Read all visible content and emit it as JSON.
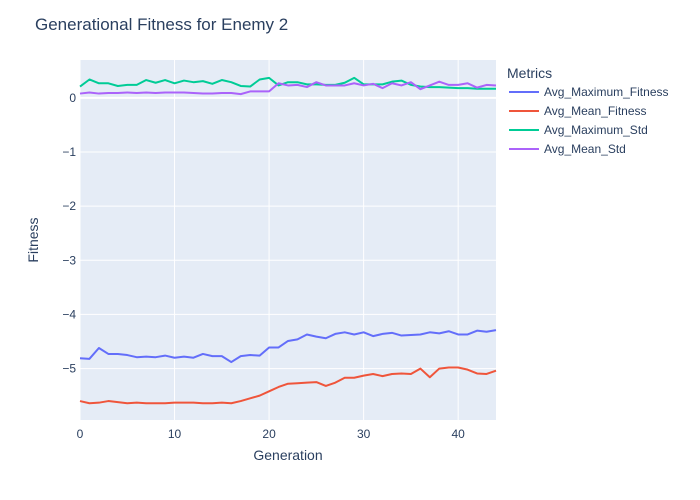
{
  "chart_data": {
    "type": "line",
    "title": "Generational Fitness for Enemy 2",
    "xlabel": "Generation",
    "ylabel": "Fitness",
    "xlim": [
      0,
      44
    ],
    "ylim": [
      -5.95,
      0.7
    ],
    "xticks": [
      0,
      10,
      20,
      30,
      40
    ],
    "yticks": [
      -5,
      -4,
      -3,
      -2,
      -1,
      0
    ],
    "grid": true,
    "legend_title": "Metrics",
    "legend_position": "right",
    "x": [
      0,
      1,
      2,
      3,
      4,
      5,
      6,
      7,
      8,
      9,
      10,
      11,
      12,
      13,
      14,
      15,
      16,
      17,
      18,
      19,
      20,
      21,
      22,
      23,
      24,
      25,
      26,
      27,
      28,
      29,
      30,
      31,
      32,
      33,
      34,
      35,
      36,
      37,
      38,
      39,
      40,
      41,
      42,
      43,
      44
    ],
    "series": [
      {
        "name": "Avg_Maximum_Fitness",
        "color": "#636efa",
        "values": [
          -4.81,
          -4.82,
          -4.62,
          -4.73,
          -4.73,
          -4.75,
          -4.79,
          -4.78,
          -4.79,
          -4.76,
          -4.8,
          -4.78,
          -4.8,
          -4.73,
          -4.77,
          -4.77,
          -4.88,
          -4.77,
          -4.75,
          -4.76,
          -4.61,
          -4.61,
          -4.49,
          -4.46,
          -4.37,
          -4.41,
          -4.44,
          -4.36,
          -4.33,
          -4.37,
          -4.33,
          -4.4,
          -4.36,
          -4.34,
          -4.39,
          -4.38,
          -4.37,
          -4.33,
          -4.35,
          -4.31,
          -4.37,
          -4.37,
          -4.3,
          -4.32,
          -4.29
        ]
      },
      {
        "name": "Avg_Mean_Fitness",
        "color": "#ef553b",
        "values": [
          -5.6,
          -5.64,
          -5.63,
          -5.6,
          -5.62,
          -5.64,
          -5.63,
          -5.64,
          -5.64,
          -5.64,
          -5.63,
          -5.63,
          -5.63,
          -5.64,
          -5.64,
          -5.63,
          -5.64,
          -5.6,
          -5.55,
          -5.5,
          -5.42,
          -5.34,
          -5.28,
          -5.27,
          -5.26,
          -5.25,
          -5.32,
          -5.26,
          -5.17,
          -5.17,
          -5.13,
          -5.1,
          -5.14,
          -5.1,
          -5.09,
          -5.1,
          -5.0,
          -5.16,
          -5.0,
          -4.98,
          -4.98,
          -5.02,
          -5.09,
          -5.1,
          -5.04
        ]
      },
      {
        "name": "Avg_Maximum_Std",
        "color": "#00cc96",
        "values": [
          0.21,
          0.34,
          0.27,
          0.27,
          0.22,
          0.24,
          0.24,
          0.33,
          0.28,
          0.33,
          0.27,
          0.32,
          0.29,
          0.31,
          0.26,
          0.33,
          0.29,
          0.22,
          0.21,
          0.34,
          0.37,
          0.23,
          0.29,
          0.29,
          0.25,
          0.25,
          0.24,
          0.24,
          0.28,
          0.37,
          0.25,
          0.25,
          0.25,
          0.3,
          0.32,
          0.24,
          0.21,
          0.2,
          0.2,
          0.19,
          0.18,
          0.18,
          0.17,
          0.17,
          0.17
        ]
      },
      {
        "name": "Avg_Mean_Std",
        "color": "#ab63fa",
        "values": [
          0.08,
          0.1,
          0.08,
          0.09,
          0.09,
          0.1,
          0.09,
          0.1,
          0.09,
          0.1,
          0.1,
          0.1,
          0.09,
          0.08,
          0.08,
          0.09,
          0.09,
          0.07,
          0.12,
          0.12,
          0.12,
          0.27,
          0.23,
          0.24,
          0.2,
          0.29,
          0.23,
          0.23,
          0.23,
          0.27,
          0.23,
          0.26,
          0.18,
          0.27,
          0.23,
          0.29,
          0.16,
          0.23,
          0.3,
          0.24,
          0.24,
          0.27,
          0.19,
          0.24,
          0.23
        ]
      }
    ]
  }
}
